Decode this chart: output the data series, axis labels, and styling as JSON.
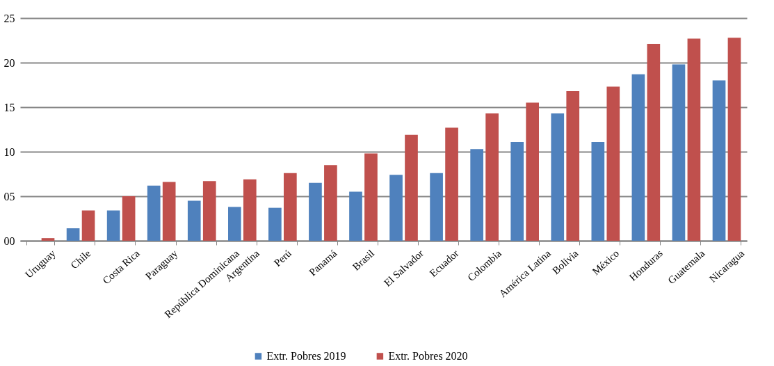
{
  "chart_data": {
    "type": "bar",
    "categories": [
      "Uruguay",
      "Chile",
      "Costa Rica",
      "Paraguay",
      "República Dominicana",
      "Argentina",
      "Perú",
      "Panamá",
      "Brasil",
      "El Salvador",
      "Ecuador",
      "Colombia",
      "América Latina",
      "Bolivia",
      "México",
      "Honduras",
      "Guatemala",
      "Nicaragua"
    ],
    "series": [
      {
        "name": "Extr. Pobres 2019",
        "color": "#4f81bd",
        "values": [
          null,
          1.4,
          3.4,
          6.2,
          4.5,
          3.8,
          3.7,
          6.5,
          5.5,
          7.4,
          7.6,
          10.3,
          11.1,
          14.3,
          11.1,
          18.7,
          19.8,
          18.0
        ]
      },
      {
        "name": "Extr. Pobres 2020",
        "color": "#c0504d",
        "values": [
          0.3,
          3.4,
          5.0,
          6.6,
          6.7,
          6.9,
          7.6,
          8.5,
          9.8,
          11.9,
          12.7,
          14.3,
          15.5,
          16.8,
          17.3,
          22.1,
          22.7,
          22.8
        ]
      }
    ],
    "ylim": [
      0,
      25
    ],
    "yticks": [
      {
        "value": 0,
        "label": "00"
      },
      {
        "value": 5,
        "label": "05"
      },
      10,
      15,
      20,
      25
    ],
    "grid": "y",
    "legend": "bottom"
  }
}
